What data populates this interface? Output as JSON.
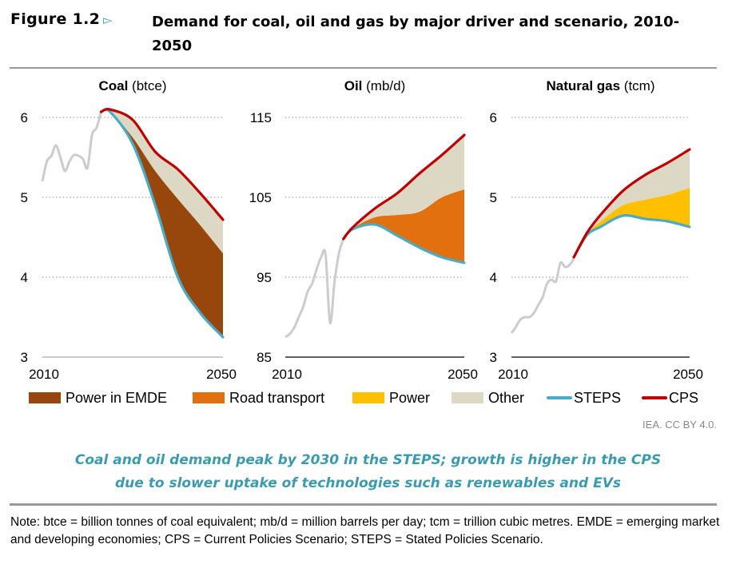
{
  "header": {
    "figure_label": "Figure 1.2",
    "figure_arrow_icon": "triangle-right-icon",
    "title": "Demand for coal, oil and gas by major driver and scenario, 2010-2050"
  },
  "legend": [
    {
      "label": "Power in EMDE",
      "color": "#97470c",
      "kind": "area"
    },
    {
      "label": "Road transport",
      "color": "#e3700f",
      "kind": "area"
    },
    {
      "label": "Power",
      "color": "#fec000",
      "kind": "area"
    },
    {
      "label": "Other",
      "color": "#ddd8c4",
      "kind": "area"
    },
    {
      "label": "STEPS",
      "color": "#4babc5",
      "kind": "line"
    },
    {
      "label": "CPS",
      "color": "#c00000",
      "kind": "line"
    }
  ],
  "credit": "IEA. CC BY 4.0.",
  "takeaway": [
    "Coal and oil demand peak by 2030 in the STEPS; growth is higher in the CPS",
    "due to slower uptake of technologies such as renewables and EVs"
  ],
  "note": "Note: btce = billion tonnes of coal equivalent; mb/d = million barrels per day; tcm = trillion cubic metres. EMDE = emerging market and developing economies; CPS = Current Policies Scenario; STEPS = Stated Policies Scenario.",
  "colors": {
    "history": "#cccccc",
    "steps": "#4babc5",
    "cps": "#c00000",
    "other": "#ddd8c4",
    "grid": "#999999"
  },
  "chart_data": [
    {
      "type": "area",
      "title": "Coal",
      "unit": "(btce)",
      "xlim": [
        2010,
        2050
      ],
      "ylim": [
        3,
        6
      ],
      "yticks": [
        3,
        4,
        5,
        6
      ],
      "xtick_labels": [
        "2010",
        "2050"
      ],
      "grid": true,
      "history": {
        "x": [
          2010,
          2011,
          2012,
          2013,
          2014,
          2015,
          2016,
          2017,
          2018,
          2019,
          2020,
          2021,
          2022,
          2023
        ],
        "y": [
          5.2,
          5.45,
          5.52,
          5.65,
          5.5,
          5.33,
          5.45,
          5.53,
          5.52,
          5.48,
          5.37,
          5.78,
          5.87,
          6.07
        ]
      },
      "projection_years": [
        2023,
        2025,
        2030,
        2035,
        2040,
        2045,
        2050
      ],
      "steps": [
        6.07,
        6.07,
        5.67,
        4.9,
        4.0,
        3.55,
        3.25
      ],
      "cps": [
        6.07,
        6.1,
        5.97,
        5.57,
        5.35,
        5.05,
        4.72
      ],
      "bands": [
        {
          "name": "Power in EMDE",
          "values": [
            0,
            0.01,
            0.08,
            0.43,
            0.98,
            1.1,
            1.05
          ],
          "color": "#97470c"
        },
        {
          "name": "Other",
          "values": [
            0,
            0.02,
            0.22,
            0.24,
            0.37,
            0.4,
            0.42
          ],
          "color": "#ddd8c4"
        }
      ]
    },
    {
      "type": "area",
      "title": "Oil",
      "unit": "(mb/d)",
      "xlim": [
        2010,
        2050
      ],
      "ylim": [
        85,
        115
      ],
      "yticks": [
        85,
        95,
        105,
        115
      ],
      "xtick_labels": [
        "2010",
        "2050"
      ],
      "grid": true,
      "history": {
        "x": [
          2010,
          2011,
          2012,
          2013,
          2014,
          2015,
          2016,
          2017,
          2018,
          2019,
          2020,
          2021,
          2022,
          2023
        ],
        "y": [
          87.5,
          87.9,
          88.7,
          90,
          91.3,
          93.2,
          94.2,
          96,
          97.5,
          97.8,
          89.3,
          94.4,
          98,
          99.8
        ]
      },
      "projection_years": [
        2023,
        2025,
        2030,
        2035,
        2040,
        2045,
        2050
      ],
      "steps": [
        99.8,
        101.0,
        101.6,
        100.2,
        98.7,
        97.5,
        96.8
      ],
      "cps": [
        99.8,
        101.2,
        103.6,
        105.5,
        108,
        110.3,
        112.8
      ],
      "bands": [
        {
          "name": "Road transport",
          "values": [
            0,
            0.1,
            0.9,
            2.6,
            4.5,
            7.5,
            9.2
          ],
          "color": "#e3700f"
        },
        {
          "name": "Other",
          "values": [
            0,
            0.1,
            1.1,
            2.7,
            4.8,
            5.3,
            6.8
          ],
          "color": "#ddd8c4"
        }
      ]
    },
    {
      "type": "area",
      "title": "Natural gas",
      "unit": "(tcm)",
      "xlim": [
        2010,
        2050
      ],
      "ylim": [
        3,
        6
      ],
      "yticks": [
        3,
        4,
        5,
        6
      ],
      "xtick_labels": [
        "2010",
        "2050"
      ],
      "grid": true,
      "history": {
        "x": [
          2010,
          2011,
          2012,
          2013,
          2014,
          2015,
          2016,
          2017,
          2018,
          2019,
          2020,
          2021,
          2022,
          2023,
          2024
        ],
        "y": [
          3.3,
          3.38,
          3.47,
          3.5,
          3.5,
          3.55,
          3.65,
          3.75,
          3.92,
          3.97,
          3.95,
          4.18,
          4.13,
          4.15,
          4.23
        ]
      },
      "projection_years": [
        2024,
        2027,
        2030,
        2035,
        2040,
        2045,
        2050
      ],
      "steps": [
        4.25,
        4.53,
        4.63,
        4.77,
        4.73,
        4.7,
        4.63
      ],
      "cps": [
        4.25,
        4.56,
        4.78,
        5.08,
        5.28,
        5.43,
        5.6
      ],
      "bands": [
        {
          "name": "Power",
          "values": [
            0,
            0.01,
            0.07,
            0.13,
            0.24,
            0.33,
            0.49
          ],
          "color": "#fec000"
        },
        {
          "name": "Other",
          "values": [
            0,
            0.02,
            0.08,
            0.18,
            0.31,
            0.4,
            0.48
          ],
          "color": "#ddd8c4"
        }
      ]
    }
  ]
}
